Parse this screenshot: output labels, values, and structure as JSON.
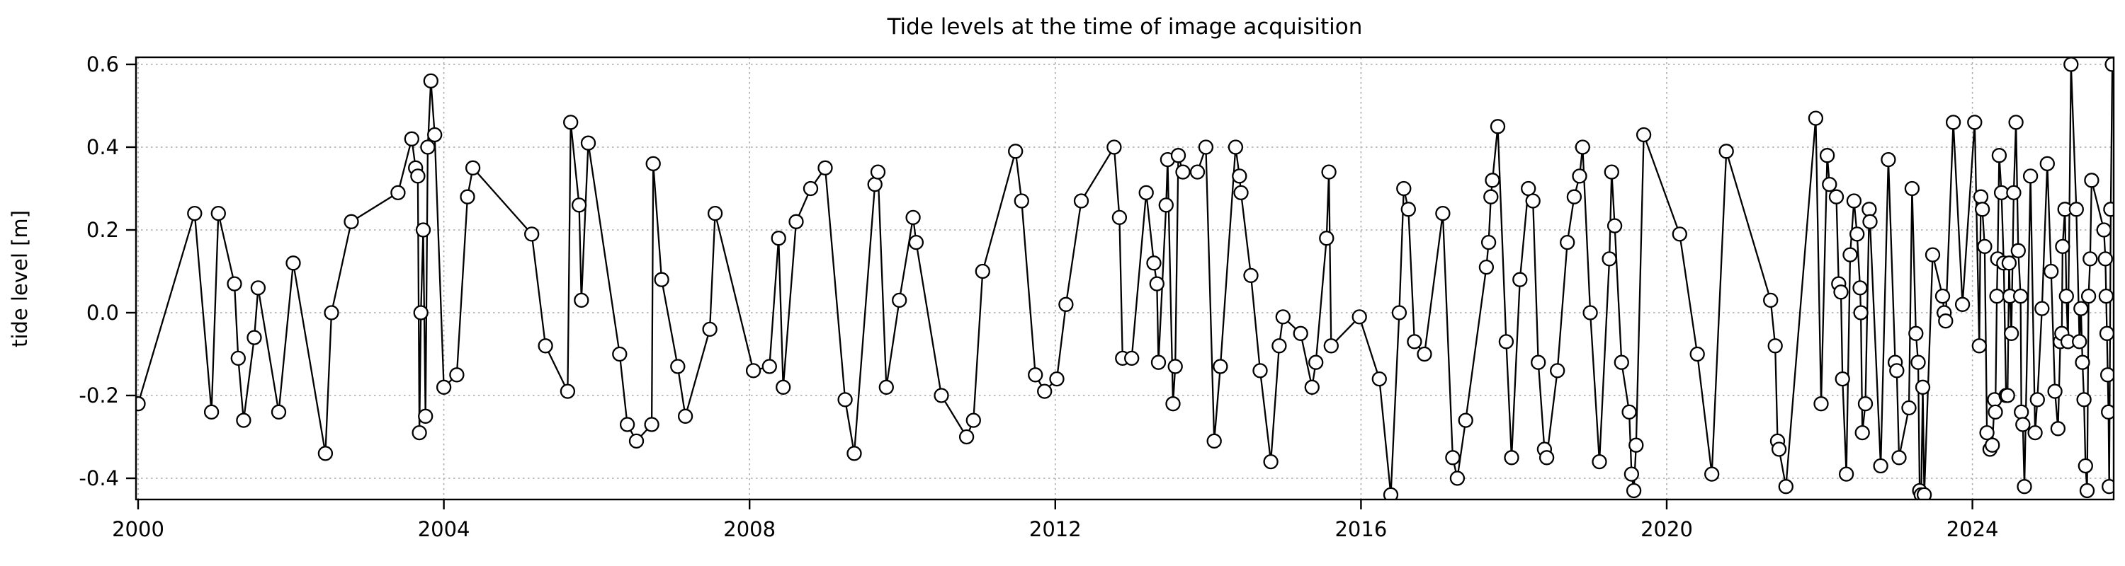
{
  "figure": {
    "background": "#ffffff",
    "frame_color": "#000000",
    "grid_color": "#aaaaaa",
    "line_color": "#000000",
    "marker_fill": "#ffffff"
  },
  "chart_data": {
    "type": "line",
    "title": "Tide levels at the time of image acquisition",
    "xlabel": "",
    "ylabel": "tide level [m]",
    "legend_position": "none",
    "grid": "dotted major gridlines both axes",
    "marker": "open-circle",
    "xlim": [
      1999.97,
      2025.87
    ],
    "ylim": [
      -0.451,
      0.617
    ],
    "xticks": [
      2000,
      2004,
      2008,
      2012,
      2016,
      2020,
      2024
    ],
    "yticks": [
      0.6,
      0.4,
      0.2,
      0.0,
      -0.2,
      -0.4
    ],
    "ytick_labels": [
      "0.6",
      "0.4",
      "0.2",
      "0.0",
      "-0.2",
      "-0.4"
    ],
    "xtick_labels": [
      "2000",
      "2004",
      "2008",
      "2012",
      "2016",
      "2020",
      "2024"
    ],
    "points": [
      [
        2000.0,
        -0.22
      ],
      [
        2000.74,
        0.24
      ],
      [
        2000.96,
        -0.24
      ],
      [
        2001.05,
        0.24
      ],
      [
        2001.26,
        0.07
      ],
      [
        2001.31,
        -0.11
      ],
      [
        2001.38,
        -0.26
      ],
      [
        2001.52,
        -0.06
      ],
      [
        2001.57,
        0.06
      ],
      [
        2001.84,
        -0.24
      ],
      [
        2002.03,
        0.12
      ],
      [
        2002.45,
        -0.34
      ],
      [
        2002.53,
        0.0
      ],
      [
        2002.79,
        0.22
      ],
      [
        2003.4,
        0.29
      ],
      [
        2003.58,
        0.42
      ],
      [
        2003.63,
        0.35
      ],
      [
        2003.66,
        0.33
      ],
      [
        2003.68,
        -0.29
      ],
      [
        2003.7,
        0.0
      ],
      [
        2003.73,
        0.2
      ],
      [
        2003.76,
        -0.25
      ],
      [
        2003.79,
        0.4
      ],
      [
        2003.83,
        0.56
      ],
      [
        2003.88,
        0.43
      ],
      [
        2004.0,
        -0.18
      ],
      [
        2004.17,
        -0.15
      ],
      [
        2004.31,
        0.28
      ],
      [
        2004.38,
        0.35
      ],
      [
        2005.15,
        0.19
      ],
      [
        2005.33,
        -0.08
      ],
      [
        2005.62,
        -0.19
      ],
      [
        2005.66,
        0.46
      ],
      [
        2005.77,
        0.26
      ],
      [
        2005.8,
        0.03
      ],
      [
        2005.89,
        0.41
      ],
      [
        2006.3,
        -0.1
      ],
      [
        2006.4,
        -0.27
      ],
      [
        2006.52,
        -0.31
      ],
      [
        2006.72,
        -0.27
      ],
      [
        2006.74,
        0.36
      ],
      [
        2006.85,
        0.08
      ],
      [
        2007.06,
        -0.13
      ],
      [
        2007.16,
        -0.25
      ],
      [
        2007.48,
        -0.04
      ],
      [
        2007.55,
        0.24
      ],
      [
        2008.05,
        -0.14
      ],
      [
        2008.26,
        -0.13
      ],
      [
        2008.38,
        0.18
      ],
      [
        2008.44,
        -0.18
      ],
      [
        2008.61,
        0.22
      ],
      [
        2008.8,
        0.3
      ],
      [
        2008.99,
        0.35
      ],
      [
        2009.25,
        -0.21
      ],
      [
        2009.37,
        -0.34
      ],
      [
        2009.64,
        0.31
      ],
      [
        2009.68,
        0.34
      ],
      [
        2009.79,
        -0.18
      ],
      [
        2009.96,
        0.03
      ],
      [
        2010.14,
        0.23
      ],
      [
        2010.18,
        0.17
      ],
      [
        2010.51,
        -0.2
      ],
      [
        2010.84,
        -0.3
      ],
      [
        2010.93,
        -0.26
      ],
      [
        2011.05,
        0.1
      ],
      [
        2011.48,
        0.39
      ],
      [
        2011.56,
        0.27
      ],
      [
        2011.74,
        -0.15
      ],
      [
        2011.86,
        -0.19
      ],
      [
        2012.02,
        -0.16
      ],
      [
        2012.14,
        0.02
      ],
      [
        2012.34,
        0.27
      ],
      [
        2012.77,
        0.4
      ],
      [
        2012.84,
        0.23
      ],
      [
        2012.88,
        -0.11
      ],
      [
        2013.0,
        -0.11
      ],
      [
        2013.19,
        0.29
      ],
      [
        2013.29,
        0.12
      ],
      [
        2013.33,
        0.07
      ],
      [
        2013.35,
        -0.12
      ],
      [
        2013.45,
        0.26
      ],
      [
        2013.47,
        0.37
      ],
      [
        2013.54,
        -0.22
      ],
      [
        2013.57,
        -0.13
      ],
      [
        2013.61,
        0.38
      ],
      [
        2013.67,
        0.34
      ],
      [
        2013.86,
        0.34
      ],
      [
        2013.97,
        0.4
      ],
      [
        2014.08,
        -0.31
      ],
      [
        2014.16,
        -0.13
      ],
      [
        2014.36,
        0.4
      ],
      [
        2014.41,
        0.33
      ],
      [
        2014.43,
        0.29
      ],
      [
        2014.56,
        0.09
      ],
      [
        2014.68,
        -0.14
      ],
      [
        2014.82,
        -0.36
      ],
      [
        2014.93,
        -0.08
      ],
      [
        2014.98,
        -0.01
      ],
      [
        2015.21,
        -0.05
      ],
      [
        2015.36,
        -0.18
      ],
      [
        2015.41,
        -0.12
      ],
      [
        2015.55,
        0.18
      ],
      [
        2015.58,
        0.34
      ],
      [
        2015.61,
        -0.08
      ],
      [
        2015.98,
        -0.01
      ],
      [
        2016.24,
        -0.16
      ],
      [
        2016.39,
        -0.44
      ],
      [
        2016.5,
        0.0
      ],
      [
        2016.56,
        0.3
      ],
      [
        2016.62,
        0.25
      ],
      [
        2016.7,
        -0.07
      ],
      [
        2016.83,
        -0.1
      ],
      [
        2017.07,
        0.24
      ],
      [
        2017.2,
        -0.35
      ],
      [
        2017.26,
        -0.4
      ],
      [
        2017.37,
        -0.26
      ],
      [
        2017.64,
        0.11
      ],
      [
        2017.67,
        0.17
      ],
      [
        2017.7,
        0.28
      ],
      [
        2017.72,
        0.32
      ],
      [
        2017.79,
        0.45
      ],
      [
        2017.9,
        -0.07
      ],
      [
        2017.97,
        -0.35
      ],
      [
        2018.08,
        0.08
      ],
      [
        2018.19,
        0.3
      ],
      [
        2018.25,
        0.27
      ],
      [
        2018.32,
        -0.12
      ],
      [
        2018.4,
        -0.33
      ],
      [
        2018.43,
        -0.35
      ],
      [
        2018.57,
        -0.14
      ],
      [
        2018.7,
        0.17
      ],
      [
        2018.79,
        0.28
      ],
      [
        2018.86,
        0.33
      ],
      [
        2018.9,
        0.4
      ],
      [
        2019.0,
        0.0
      ],
      [
        2019.12,
        -0.36
      ],
      [
        2019.25,
        0.13
      ],
      [
        2019.28,
        0.34
      ],
      [
        2019.32,
        0.21
      ],
      [
        2019.41,
        -0.12
      ],
      [
        2019.51,
        -0.24
      ],
      [
        2019.54,
        -0.39
      ],
      [
        2019.57,
        -0.43
      ],
      [
        2019.6,
        -0.32
      ],
      [
        2019.7,
        0.43
      ],
      [
        2020.17,
        0.19
      ],
      [
        2020.4,
        -0.1
      ],
      [
        2020.59,
        -0.39
      ],
      [
        2020.78,
        0.39
      ],
      [
        2021.36,
        0.03
      ],
      [
        2021.42,
        -0.08
      ],
      [
        2021.45,
        -0.31
      ],
      [
        2021.47,
        -0.33
      ],
      [
        2021.56,
        -0.42
      ],
      [
        2021.95,
        0.47
      ],
      [
        2022.02,
        -0.22
      ],
      [
        2022.1,
        0.38
      ],
      [
        2022.13,
        0.31
      ],
      [
        2022.22,
        0.28
      ],
      [
        2022.25,
        0.07
      ],
      [
        2022.28,
        0.05
      ],
      [
        2022.3,
        -0.16
      ],
      [
        2022.35,
        -0.39
      ],
      [
        2022.4,
        0.14
      ],
      [
        2022.45,
        0.27
      ],
      [
        2022.49,
        0.19
      ],
      [
        2022.53,
        0.06
      ],
      [
        2022.54,
        0.0
      ],
      [
        2022.56,
        -0.29
      ],
      [
        2022.6,
        -0.22
      ],
      [
        2022.65,
        0.25
      ],
      [
        2022.66,
        0.22
      ],
      [
        2022.8,
        -0.37
      ],
      [
        2022.9,
        0.37
      ],
      [
        2022.99,
        -0.12
      ],
      [
        2023.01,
        -0.14
      ],
      [
        2023.04,
        -0.35
      ],
      [
        2023.17,
        -0.23
      ],
      [
        2023.21,
        0.3
      ],
      [
        2023.26,
        -0.05
      ],
      [
        2023.29,
        -0.12
      ],
      [
        2023.31,
        -0.43
      ],
      [
        2023.33,
        -0.44
      ],
      [
        2023.35,
        -0.18
      ],
      [
        2023.37,
        -0.44
      ],
      [
        2023.48,
        0.14
      ],
      [
        2023.61,
        0.04
      ],
      [
        2023.63,
        0.0
      ],
      [
        2023.65,
        -0.02
      ],
      [
        2023.75,
        0.46
      ],
      [
        2023.87,
        0.02
      ],
      [
        2024.03,
        0.46
      ],
      [
        2024.09,
        -0.08
      ],
      [
        2024.11,
        0.28
      ],
      [
        2024.13,
        0.25
      ],
      [
        2024.16,
        0.16
      ],
      [
        2024.19,
        -0.29
      ],
      [
        2024.23,
        -0.33
      ],
      [
        2024.26,
        -0.32
      ],
      [
        2024.29,
        -0.21
      ],
      [
        2024.3,
        -0.24
      ],
      [
        2024.32,
        0.04
      ],
      [
        2024.33,
        0.13
      ],
      [
        2024.35,
        0.38
      ],
      [
        2024.38,
        0.29
      ],
      [
        2024.41,
        0.12
      ],
      [
        2024.44,
        -0.2
      ],
      [
        2024.46,
        -0.2
      ],
      [
        2024.48,
        0.12
      ],
      [
        2024.49,
        0.04
      ],
      [
        2024.51,
        -0.05
      ],
      [
        2024.54,
        0.29
      ],
      [
        2024.57,
        0.46
      ],
      [
        2024.6,
        0.15
      ],
      [
        2024.63,
        0.04
      ],
      [
        2024.64,
        -0.24
      ],
      [
        2024.66,
        -0.27
      ],
      [
        2024.68,
        -0.42
      ],
      [
        2024.76,
        0.33
      ],
      [
        2024.82,
        -0.29
      ],
      [
        2024.85,
        -0.21
      ],
      [
        2024.91,
        0.01
      ],
      [
        2024.98,
        0.36
      ],
      [
        2025.03,
        0.1
      ],
      [
        2025.08,
        -0.19
      ],
      [
        2025.12,
        -0.28
      ],
      [
        2025.15,
        -0.07
      ],
      [
        2025.17,
        -0.05
      ],
      [
        2025.18,
        0.16
      ],
      [
        2025.21,
        0.25
      ],
      [
        2025.23,
        0.04
      ],
      [
        2025.25,
        -0.07
      ],
      [
        2025.29,
        0.6
      ],
      [
        2025.36,
        0.25
      ],
      [
        2025.4,
        -0.07
      ],
      [
        2025.42,
        0.01
      ],
      [
        2025.44,
        -0.12
      ],
      [
        2025.46,
        -0.21
      ],
      [
        2025.48,
        -0.37
      ],
      [
        2025.5,
        -0.43
      ],
      [
        2025.52,
        0.04
      ],
      [
        2025.54,
        0.13
      ],
      [
        2025.56,
        0.32
      ],
      [
        2025.72,
        0.2
      ],
      [
        2025.74,
        0.13
      ],
      [
        2025.75,
        0.04
      ],
      [
        2025.76,
        -0.05
      ],
      [
        2025.77,
        -0.15
      ],
      [
        2025.78,
        -0.24
      ],
      [
        2025.79,
        -0.42
      ],
      [
        2025.81,
        0.25
      ],
      [
        2025.83,
        0.6
      ]
    ]
  }
}
